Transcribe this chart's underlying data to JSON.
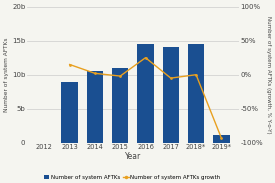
{
  "years": [
    "2012",
    "2013",
    "2014",
    "2015",
    "2016",
    "2017",
    "2018*",
    "2019*"
  ],
  "aftks": [
    0,
    9000000000.0,
    10500000000.0,
    11000000000.0,
    14500000000.0,
    14000000000.0,
    14500000000.0,
    1200000000.0
  ],
  "growth": [
    null,
    0.15,
    0.02,
    -0.02,
    0.25,
    -0.05,
    0.0,
    -0.93
  ],
  "bar_color": "#1a4f91",
  "line_color": "#e8a020",
  "ylim_left": [
    0,
    20000000000.0
  ],
  "ylim_right": [
    -1.0,
    1.0
  ],
  "yticks_left": [
    0,
    5000000000.0,
    10000000000.0,
    15000000000.0,
    20000000000.0
  ],
  "yticks_left_labels": [
    "0",
    "5b",
    "10b",
    "15b",
    "20b"
  ],
  "yticks_right": [
    -1.0,
    -0.5,
    0.0,
    0.5,
    1.0
  ],
  "yticks_right_labels": [
    "-100%",
    "-50%",
    "0%",
    "50%",
    "100%"
  ],
  "xlabel": "Year",
  "ylabel_left": "Number of system AFTKs",
  "ylabel_right": "Number of system AFTKs (growth, % Y-o-Y)",
  "legend_bar": "Number of system AFTKs",
  "legend_line": "Number of system AFTKs growth",
  "bg_color": "#f5f5f0",
  "grid_color": "#cccccc"
}
